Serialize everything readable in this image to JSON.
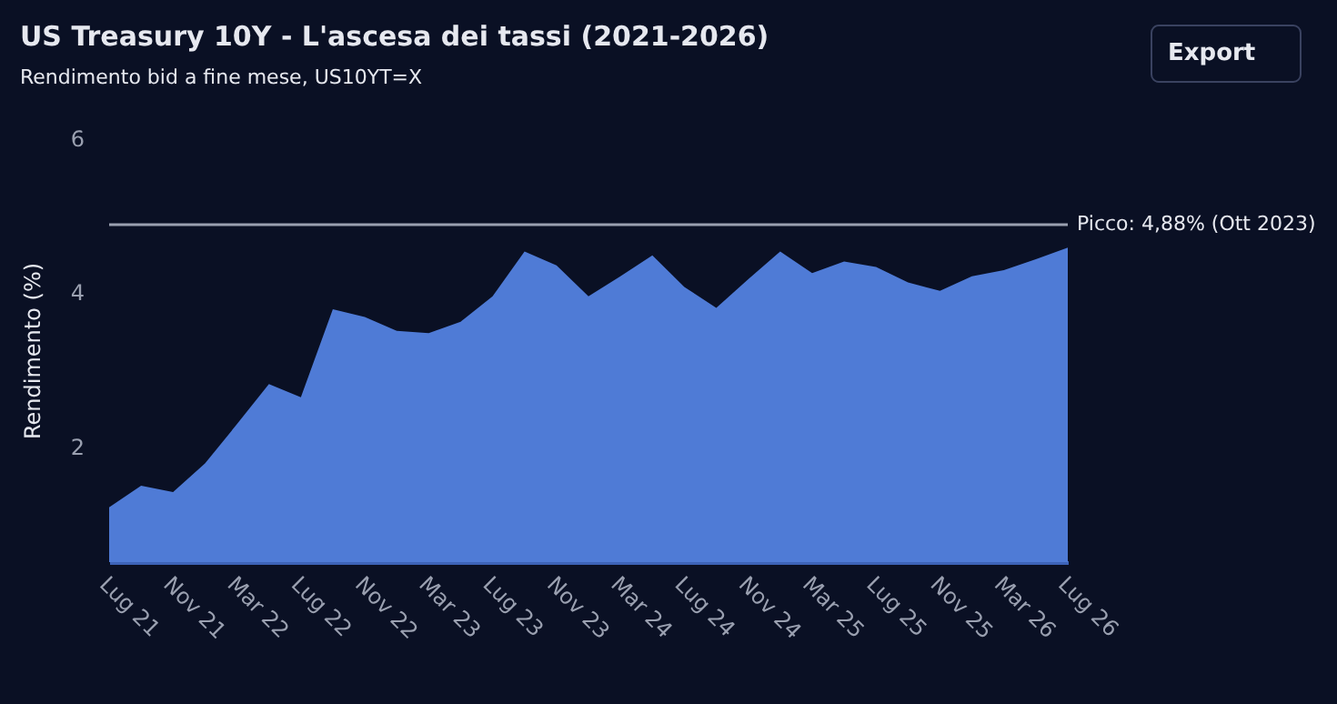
{
  "chart_data": {
    "type": "area",
    "title": "US Treasury 10Y - L'ascesa dei tassi (2021-2026)",
    "subtitle": "Rendimento bid a fine mese, US10YT=X",
    "ylabel": "Rendimento (%)",
    "categories": [
      "Lug 21",
      null,
      "Nov 21",
      null,
      "Mar 22",
      null,
      "Lug 22",
      null,
      "Nov 22",
      null,
      "Mar 23",
      null,
      "Lug 23",
      null,
      "Nov 23",
      null,
      "Mar 24",
      null,
      "Lug 24",
      null,
      "Nov 24",
      null,
      "Mar 25",
      null,
      "Lug 25",
      null,
      "Nov 25",
      null,
      "Mar 26",
      null,
      "Lug 26"
    ],
    "series": [
      {
        "color": "#4f7bd6",
        "values": [
          1.21,
          1.49,
          1.41,
          1.78,
          2.29,
          2.81,
          2.64,
          3.78,
          3.68,
          3.5,
          3.47,
          3.62,
          3.95,
          4.53,
          4.35,
          3.95,
          4.21,
          4.48,
          4.07,
          3.8,
          4.17,
          4.53,
          4.25,
          4.4,
          4.33,
          4.13,
          4.02,
          4.21,
          4.29,
          4.43,
          4.58
        ]
      }
    ],
    "ylim": [
      0.5,
      6
    ],
    "yticks": [
      2,
      4,
      6
    ],
    "grid": false,
    "ref_lines": [
      {
        "axis": "y",
        "value": 4.88,
        "label": "Picco: 4,88% (Ott 2023)",
        "color": "#9aa0b0"
      }
    ],
    "annotations": [
      "Export"
    ]
  }
}
